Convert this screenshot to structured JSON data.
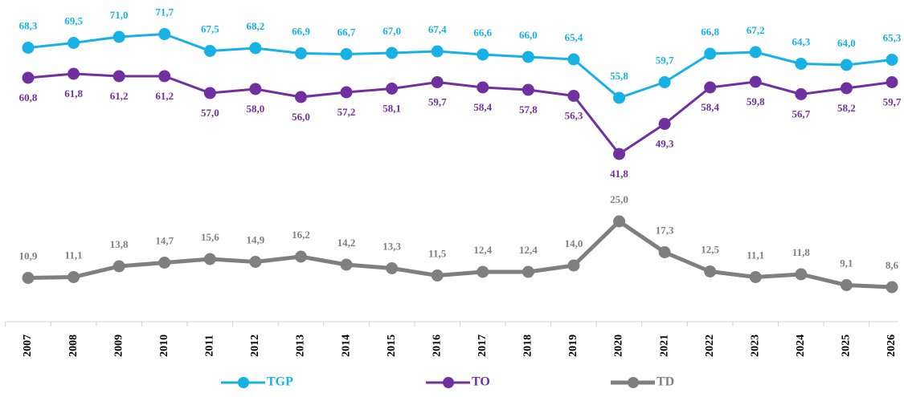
{
  "chart_data": {
    "type": "line",
    "categories": [
      "2007",
      "2008",
      "2009",
      "2010",
      "2011",
      "2012",
      "2013",
      "2014",
      "2015",
      "2016",
      "2017",
      "2018",
      "2019",
      "2020",
      "2021",
      "2022",
      "2023",
      "2024",
      "2025",
      "2026"
    ],
    "ylim": [
      0,
      76
    ],
    "legend": "bottom",
    "series": [
      {
        "name": "TGP",
        "color": "#17b1e6",
        "values": [
          68.3,
          69.5,
          71.0,
          71.7,
          67.5,
          68.2,
          66.9,
          66.7,
          67.0,
          67.4,
          66.6,
          66.0,
          65.4,
          55.8,
          59.7,
          66.8,
          67.2,
          64.3,
          64.0,
          65.3
        ],
        "value_labels": [
          "68,3",
          "69,5",
          "71,0",
          "71,7",
          "67,5",
          "68,2",
          "66,9",
          "66,7",
          "67,0",
          "67,4",
          "66,6",
          "66,0",
          "65,4",
          "55,8",
          "59,7",
          "66,8",
          "67,2",
          "64,3",
          "64,0",
          "65,3"
        ]
      },
      {
        "name": "TO",
        "color": "#7030a0",
        "values": [
          60.8,
          61.8,
          61.2,
          61.2,
          57.0,
          58.0,
          56.0,
          57.2,
          58.1,
          59.7,
          58.4,
          57.8,
          56.3,
          41.8,
          49.3,
          58.4,
          59.8,
          56.7,
          58.2,
          59.7
        ],
        "value_labels": [
          "60,8",
          "61,8",
          "61,2",
          "61,2",
          "57,0",
          "58,0",
          "56,0",
          "57,2",
          "58,1",
          "59,7",
          "58,4",
          "57,8",
          "56,3",
          "41,8",
          "49,3",
          "58,4",
          "59,8",
          "56,7",
          "58,2",
          "59,7"
        ]
      },
      {
        "name": "TD",
        "color": "#7f7f7f",
        "values": [
          10.9,
          11.1,
          13.8,
          14.7,
          15.6,
          14.9,
          16.2,
          14.2,
          13.3,
          11.5,
          12.4,
          12.4,
          14.0,
          25.0,
          17.3,
          12.5,
          11.1,
          11.8,
          9.1,
          8.6
        ],
        "value_labels": [
          "10,9",
          "11,1",
          "13,8",
          "14,7",
          "15,6",
          "14,9",
          "16,2",
          "14,2",
          "13,3",
          "11,5",
          "12,4",
          "12,4",
          "14,0",
          "25,0",
          "17,3",
          "12,5",
          "11,1",
          "11,8",
          "9,1",
          "8,6"
        ]
      }
    ]
  }
}
